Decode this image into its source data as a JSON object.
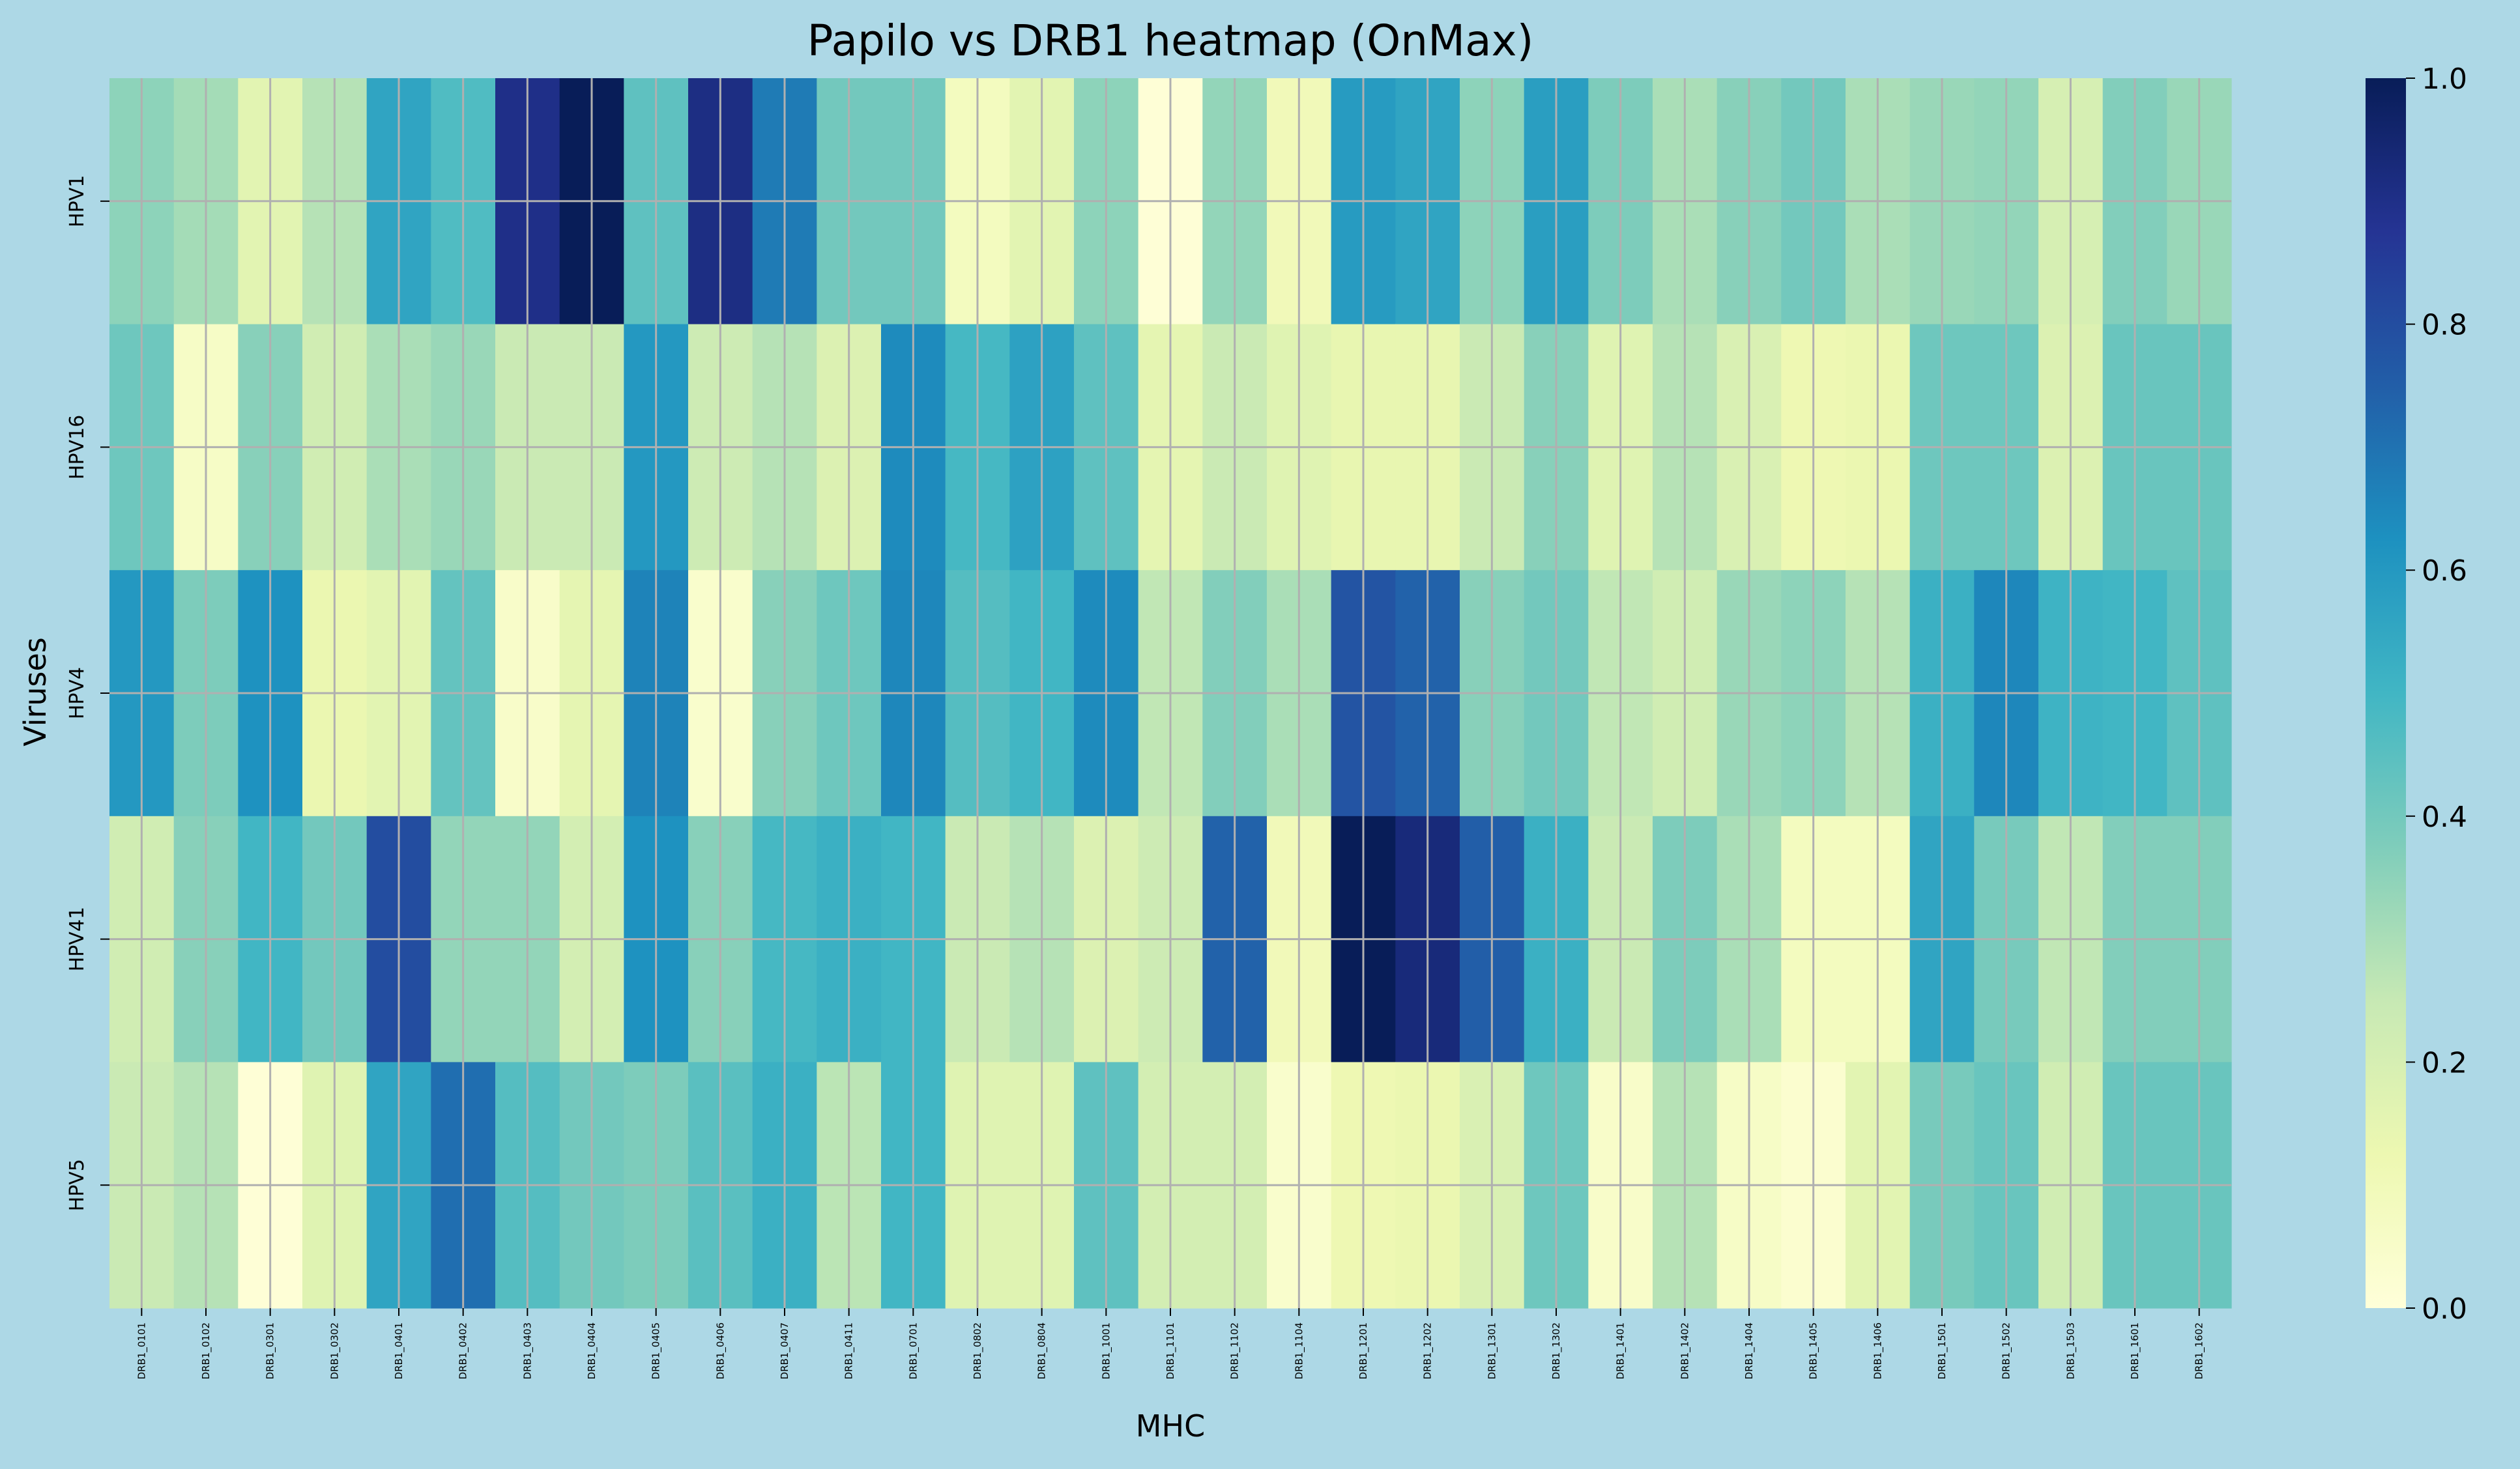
{
  "chart_data": {
    "type": "heatmap",
    "title": "Papilo vs DRB1 heatmap (OnMax)",
    "xlabel": "MHC",
    "ylabel": "Viruses",
    "rows": [
      "HPV1",
      "HPV16",
      "HPV4",
      "HPV41",
      "HPV5"
    ],
    "columns": [
      "DRB1_0101",
      "DRB1_0102",
      "DRB1_0301",
      "DRB1_0302",
      "DRB1_0401",
      "DRB1_0402",
      "DRB1_0403",
      "DRB1_0404",
      "DRB1_0405",
      "DRB1_0406",
      "DRB1_0407",
      "DRB1_0411",
      "DRB1_0701",
      "DRB1_0802",
      "DRB1_0804",
      "DRB1_1001",
      "DRB1_1101",
      "DRB1_1102",
      "DRB1_1104",
      "DRB1_1201",
      "DRB1_1202",
      "DRB1_1301",
      "DRB1_1302",
      "DRB1_1401",
      "DRB1_1402",
      "DRB1_1404",
      "DRB1_1405",
      "DRB1_1406",
      "DRB1_1501",
      "DRB1_1502",
      "DRB1_1503",
      "DRB1_1601",
      "DRB1_1602"
    ],
    "values": [
      [
        0.35,
        0.31,
        0.16,
        0.28,
        0.56,
        0.47,
        0.9,
        1.0,
        0.44,
        0.91,
        0.68,
        0.4,
        0.4,
        0.08,
        0.16,
        0.35,
        0.01,
        0.34,
        0.1,
        0.59,
        0.56,
        0.35,
        0.58,
        0.38,
        0.3,
        0.36,
        0.4,
        0.3,
        0.33,
        0.34,
        0.2,
        0.37,
        0.33
      ],
      [
        0.41,
        0.06,
        0.36,
        0.22,
        0.3,
        0.33,
        0.24,
        0.24,
        0.6,
        0.23,
        0.28,
        0.18,
        0.64,
        0.49,
        0.57,
        0.44,
        0.15,
        0.24,
        0.17,
        0.14,
        0.14,
        0.24,
        0.36,
        0.17,
        0.28,
        0.19,
        0.12,
        0.13,
        0.41,
        0.41,
        0.18,
        0.42,
        0.42
      ],
      [
        0.6,
        0.38,
        0.62,
        0.13,
        0.16,
        0.43,
        0.05,
        0.15,
        0.66,
        0.04,
        0.36,
        0.41,
        0.65,
        0.46,
        0.5,
        0.64,
        0.26,
        0.37,
        0.3,
        0.78,
        0.74,
        0.36,
        0.4,
        0.26,
        0.22,
        0.33,
        0.35,
        0.28,
        0.52,
        0.65,
        0.51,
        0.5,
        0.44
      ],
      [
        0.22,
        0.36,
        0.5,
        0.4,
        0.8,
        0.34,
        0.34,
        0.21,
        0.62,
        0.36,
        0.49,
        0.52,
        0.5,
        0.24,
        0.28,
        0.18,
        0.23,
        0.74,
        0.1,
        1.0,
        0.93,
        0.75,
        0.52,
        0.24,
        0.38,
        0.3,
        0.08,
        0.08,
        0.56,
        0.39,
        0.26,
        0.37,
        0.37
      ],
      [
        0.24,
        0.28,
        0.01,
        0.17,
        0.56,
        0.71,
        0.46,
        0.4,
        0.38,
        0.45,
        0.52,
        0.27,
        0.5,
        0.17,
        0.17,
        0.44,
        0.21,
        0.21,
        0.04,
        0.12,
        0.13,
        0.19,
        0.41,
        0.05,
        0.28,
        0.06,
        0.03,
        0.16,
        0.39,
        0.42,
        0.22,
        0.42,
        0.42
      ]
    ],
    "colorbar": {
      "range": [
        0.0,
        1.0
      ],
      "ticks": [
        "0.0",
        "0.2",
        "0.4",
        "0.6",
        "0.8",
        "1.0"
      ],
      "colormap": "YlGnBu"
    },
    "grid": true,
    "colors": {
      "background": "#add8e6",
      "grid": "#b0b0b0"
    }
  }
}
